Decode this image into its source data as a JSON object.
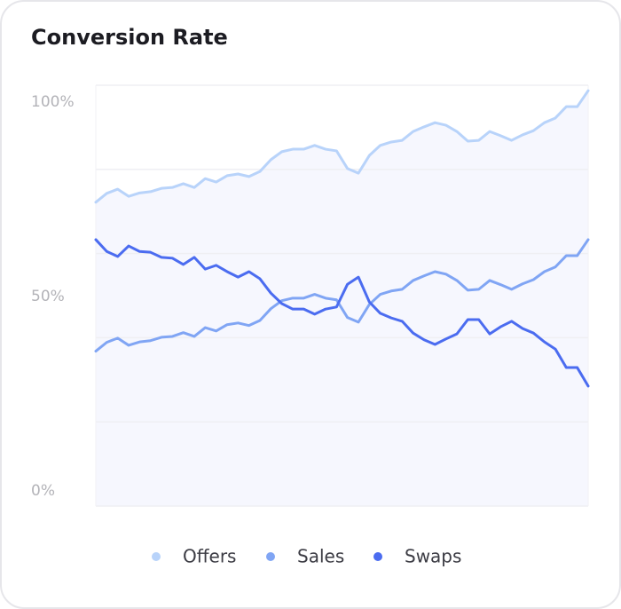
{
  "chart_data": {
    "type": "line",
    "title": "Conversion Rate",
    "ylim": [
      0,
      100
    ],
    "yticks": [
      {
        "value": 0,
        "label": "0%"
      },
      {
        "value": 50,
        "label": "50%"
      },
      {
        "value": 100,
        "label": "100%"
      }
    ],
    "ygrid": [
      0,
      20,
      40,
      60,
      80,
      100
    ],
    "grid": true,
    "legend": "bottom",
    "area_fill": "#f6f7fe",
    "series": [
      {
        "name": "Offers",
        "color": "#b8d3fa",
        "values": [
          72.2,
          74.3,
          75.3,
          73.6,
          74.4,
          74.7,
          75.5,
          75.7,
          76.6,
          75.7,
          77.8,
          77.0,
          78.5,
          78.9,
          78.3,
          79.5,
          82.3,
          84.2,
          84.8,
          84.8,
          85.7,
          84.8,
          84.4,
          80.2,
          79.1,
          83.3,
          85.7,
          86.5,
          86.9,
          89.0,
          90.1,
          91.1,
          90.5,
          89.0,
          86.7,
          86.9,
          89.0,
          88.0,
          86.9,
          88.2,
          89.2,
          91.1,
          92.2,
          94.9,
          94.9,
          98.7
        ]
      },
      {
        "name": "Sales",
        "color": "#80a5f4",
        "values": [
          36.8,
          38.9,
          39.9,
          38.2,
          39.0,
          39.3,
          40.1,
          40.3,
          41.2,
          40.3,
          42.4,
          41.6,
          43.1,
          43.5,
          42.9,
          44.1,
          46.9,
          48.8,
          49.4,
          49.4,
          50.3,
          49.4,
          49.0,
          44.8,
          43.7,
          47.9,
          50.3,
          51.1,
          51.5,
          53.6,
          54.7,
          55.7,
          55.1,
          53.6,
          51.3,
          51.5,
          53.6,
          52.6,
          51.5,
          52.8,
          53.8,
          55.7,
          56.8,
          59.5,
          59.5,
          63.3
        ]
      },
      {
        "name": "Swaps",
        "color": "#4b6cf0",
        "values": [
          63.3,
          60.5,
          59.3,
          61.8,
          60.5,
          60.3,
          59.1,
          58.9,
          57.4,
          59.1,
          56.3,
          57.2,
          55.7,
          54.4,
          55.7,
          54.0,
          50.6,
          48.1,
          46.8,
          46.8,
          45.6,
          46.8,
          47.3,
          52.7,
          54.4,
          48.5,
          45.8,
          44.7,
          43.9,
          41.1,
          39.5,
          38.4,
          39.7,
          40.9,
          44.3,
          44.3,
          40.9,
          42.6,
          43.9,
          42.2,
          41.1,
          39.0,
          37.3,
          32.9,
          32.9,
          28.5
        ]
      }
    ]
  }
}
